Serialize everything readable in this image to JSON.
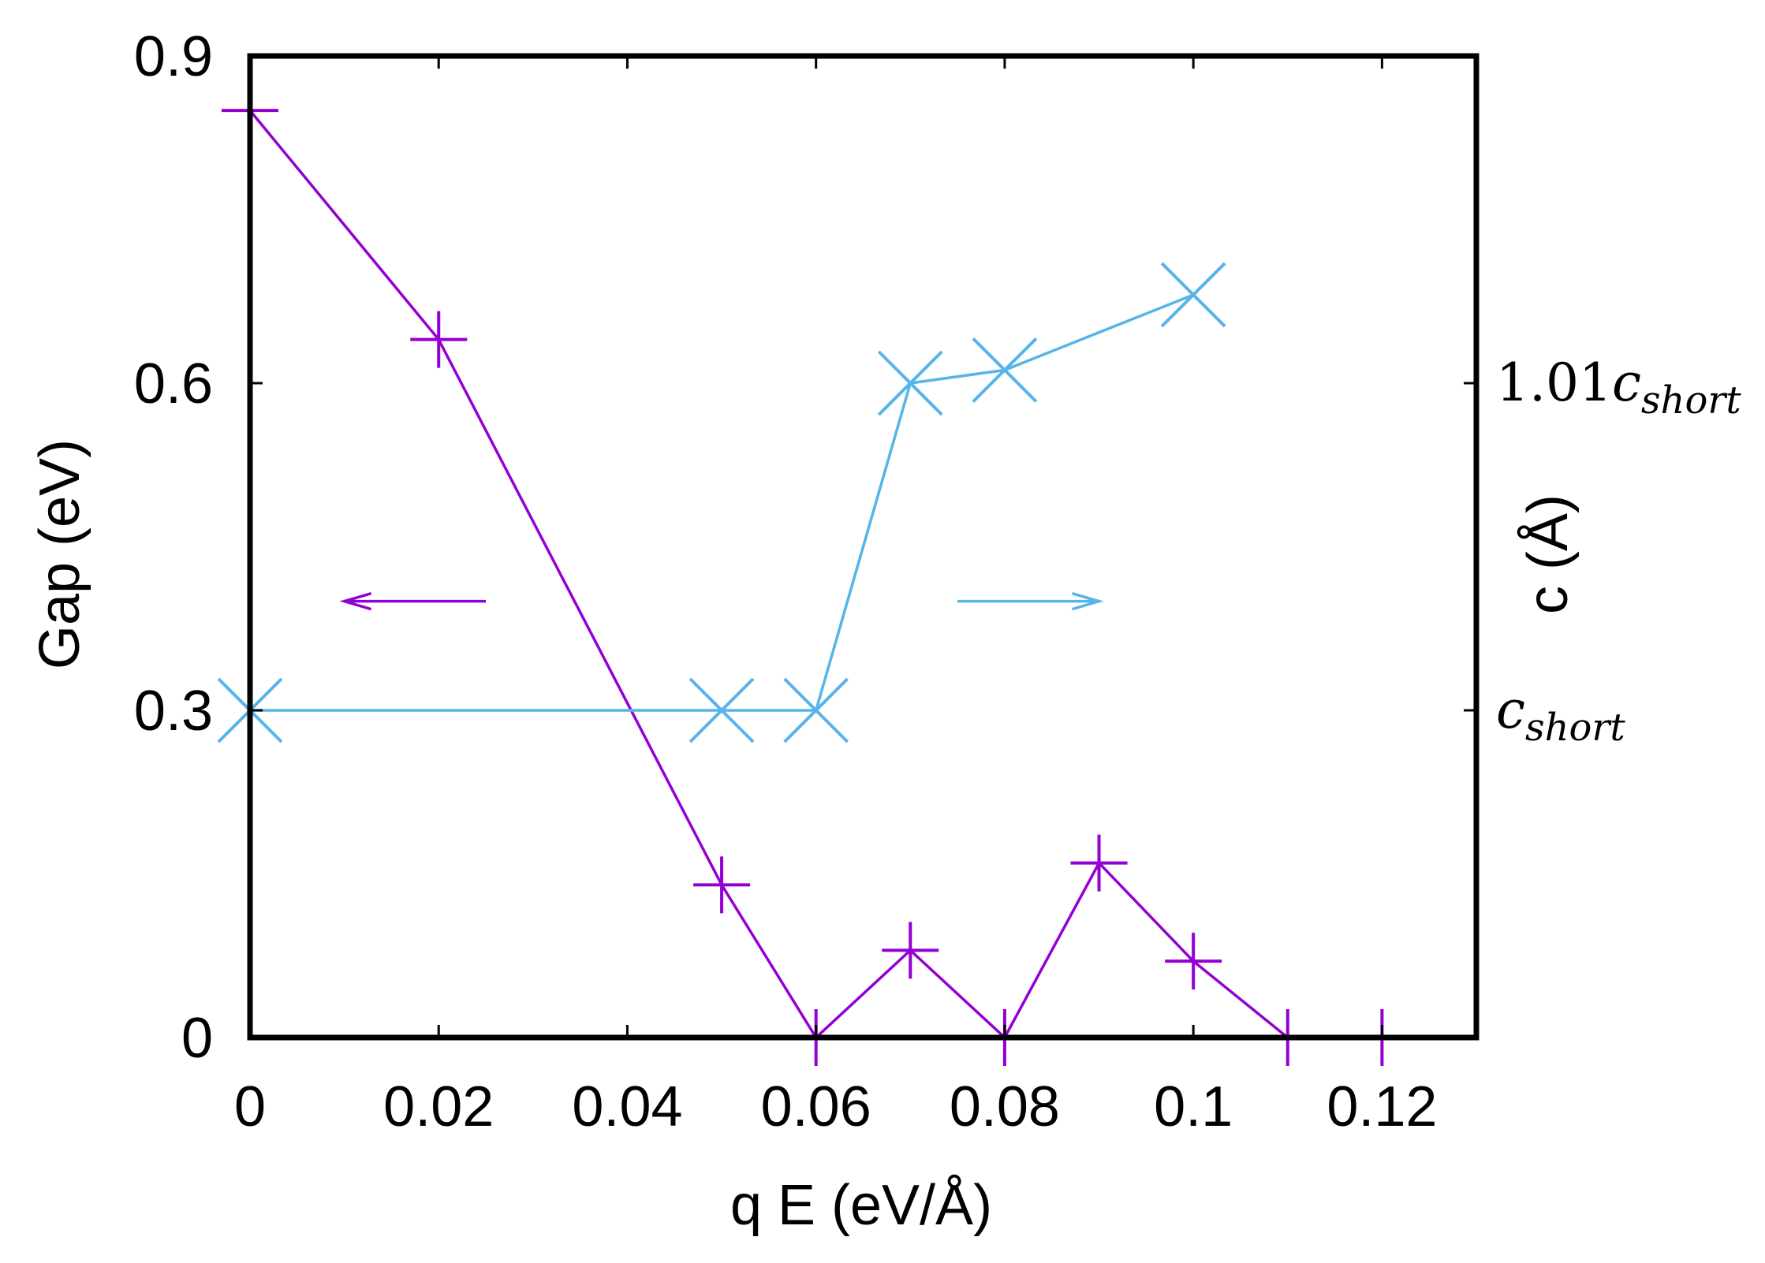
{
  "chart_data": {
    "type": "line",
    "xlabel": "q E (eV/Å)",
    "ylabel": "Gap (eV)",
    "y2label": "c (Å)",
    "xlim": [
      0,
      0.13
    ],
    "ylim": [
      0,
      0.9
    ],
    "y2lim": [
      0,
      3
    ],
    "x_ticks": [
      0,
      0.02,
      0.04,
      0.06,
      0.08,
      0.1,
      0.12
    ],
    "x_tick_labels": [
      "0",
      "0.02",
      "0.04",
      "0.06",
      "0.08",
      "0.1",
      "0.12"
    ],
    "y_ticks": [
      0,
      0.3,
      0.6,
      0.9
    ],
    "y_tick_labels": [
      "0",
      "0.3",
      "0.6",
      "0.9"
    ],
    "y2_ticks": [
      1,
      2
    ],
    "y2_tick_labels": [
      {
        "prefix": "",
        "main": "c",
        "sub": "short"
      },
      {
        "prefix": "1.01",
        "main": "c",
        "sub": "short"
      }
    ],
    "grid": false,
    "series": [
      {
        "axis": "left",
        "marker": "plus",
        "color": "#9400d3",
        "x": [
          0,
          0.02,
          0.05,
          0.06,
          0.07,
          0.08,
          0.09,
          0.1,
          0.11,
          0.12
        ],
        "y": [
          0.85,
          0.64,
          0.14,
          0.0,
          0.08,
          0.0,
          0.16,
          0.07,
          0.0,
          0.0
        ]
      },
      {
        "axis": "right",
        "marker": "cross",
        "color": "#56b4e9",
        "x": [
          0,
          0.05,
          0.06,
          0.07,
          0.08,
          0.1
        ],
        "y": [
          1.0,
          1.0,
          1.0,
          2.0,
          2.04,
          2.27
        ]
      }
    ],
    "annotations": [
      {
        "type": "arrow",
        "direction": "left",
        "color": "#9400d3",
        "from": [
          0.025,
          0.4
        ],
        "to": [
          0.01,
          0.4
        ]
      },
      {
        "type": "arrow",
        "direction": "right",
        "color": "#56b4e9",
        "from": [
          0.075,
          0.4
        ],
        "to": [
          0.09,
          0.4
        ]
      }
    ]
  }
}
